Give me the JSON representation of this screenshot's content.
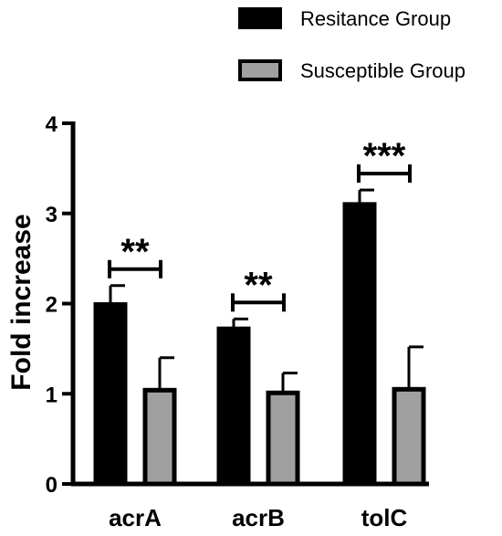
{
  "chart_data": {
    "type": "bar",
    "categories": [
      "acrA",
      "acrB",
      "tolC"
    ],
    "ylabel": "Fold increase",
    "xlabel": "",
    "ylim": [
      0,
      4
    ],
    "yticks": [
      "0",
      "1",
      "2",
      "3",
      "4"
    ],
    "grid": false,
    "legend_position": "top-right",
    "series": [
      {
        "name": "Resitance Group",
        "color": "#000000",
        "values": [
          1.99,
          1.72,
          3.1
        ],
        "errors": [
          0.21,
          0.11,
          0.16
        ]
      },
      {
        "name": "Susceptible Group",
        "color": "#a0a0a0",
        "values": [
          1.04,
          1.01,
          1.05
        ],
        "errors": [
          0.36,
          0.22,
          0.47
        ]
      }
    ],
    "significance": [
      {
        "category": "acrA",
        "label": "**"
      },
      {
        "category": "acrB",
        "label": "**"
      },
      {
        "category": "tolC",
        "label": "***"
      }
    ]
  }
}
